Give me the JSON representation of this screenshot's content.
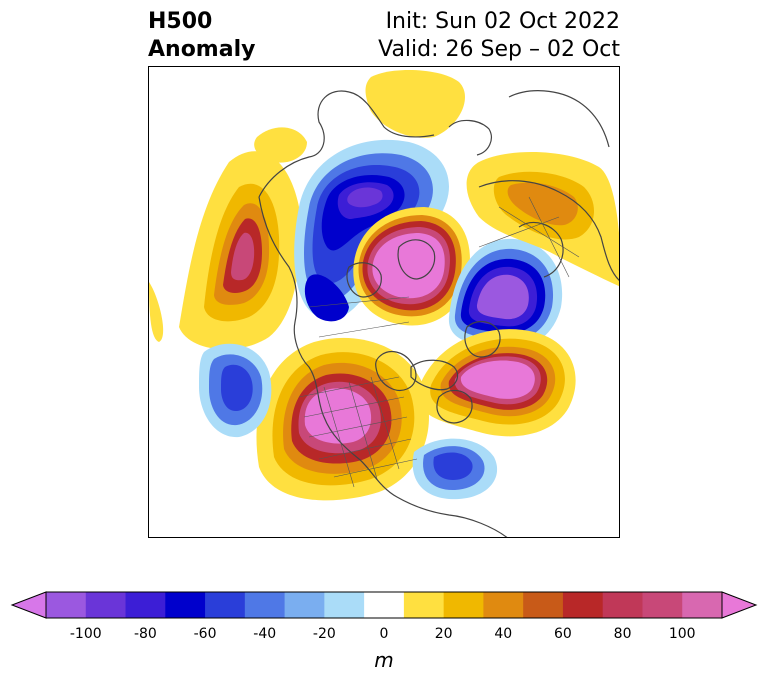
{
  "header": {
    "title_line1": "H500",
    "title_line2": "Anomaly",
    "init_text": "Init: Sun 02 Oct 2022",
    "valid_text": "Valid: 26 Sep – 02 Oct"
  },
  "colorbar": {
    "unit": "m",
    "ticks": [
      "-100",
      "-80",
      "-60",
      "-40",
      "-20",
      "0",
      "20",
      "40",
      "60",
      "80",
      "100"
    ],
    "colors": [
      "#d777e9",
      "#9b58e0",
      "#6a35d8",
      "#3c1ed6",
      "#0000cc",
      "#2a3ed9",
      "#4f78e6",
      "#7aaef0",
      "#aadcf8",
      "#ffffff",
      "#ffe040",
      "#f0b800",
      "#e08a10",
      "#c85a18",
      "#b82828",
      "#c03858",
      "#c84878",
      "#d868b0",
      "#e878d8"
    ]
  },
  "anomalies": [
    {
      "id": "alaska-low",
      "value": -70
    },
    {
      "id": "pole-high",
      "value": 100
    },
    {
      "id": "siberia-low",
      "value": -80
    },
    {
      "id": "canada-high",
      "value": 90
    },
    {
      "id": "greenland-high",
      "value": 100
    },
    {
      "id": "pacific-high",
      "value": 60
    },
    {
      "id": "eurasia-high",
      "value": 40
    },
    {
      "id": "pacific-low",
      "value": -60
    },
    {
      "id": "atlantic-low",
      "value": -50
    }
  ]
}
